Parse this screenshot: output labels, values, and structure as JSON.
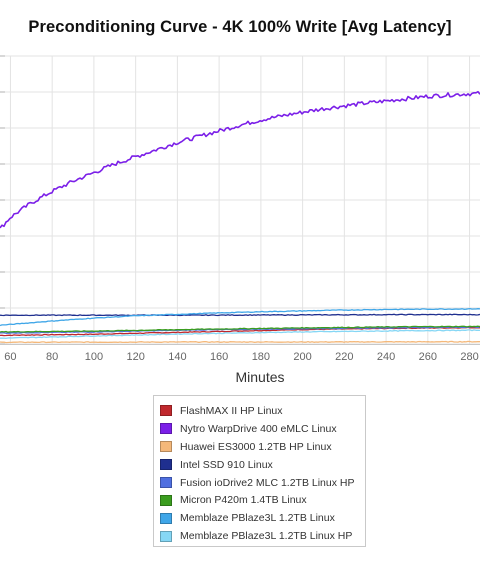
{
  "chart_data": {
    "type": "line",
    "title": "Preconditioning Curve - 4K 100% Write [Avg Latency]",
    "xlabel": "Minutes",
    "ylabel": "",
    "xlim": [
      55,
      285
    ],
    "ylim": [
      0,
      100
    ],
    "x_ticks": [
      60,
      80,
      100,
      120,
      140,
      160,
      180,
      200,
      220,
      240,
      260,
      280
    ],
    "grid": true,
    "legend_position": "bottom",
    "series": [
      {
        "name": "FlashMAX II HP Linux",
        "color": "#c0282d",
        "x": [
          55,
          100,
          150,
          200,
          250,
          285
        ],
        "y": [
          3.0,
          3.4,
          4.2,
          5.0,
          5.5,
          5.7
        ]
      },
      {
        "name": "Nytro WarpDrive 400 eMLC Linux",
        "color": "#7b1fe8",
        "x": [
          55,
          60,
          70,
          80,
          90,
          100,
          110,
          120,
          130,
          140,
          150,
          160,
          170,
          180,
          190,
          200,
          210,
          220,
          230,
          240,
          250,
          260,
          270,
          280,
          285
        ],
        "y": [
          40.0,
          44.0,
          49.0,
          53.0,
          56.5,
          59.5,
          62.5,
          65.0,
          67.5,
          70.0,
          72.0,
          74.0,
          76.0,
          77.8,
          79.2,
          80.5,
          81.7,
          82.7,
          83.6,
          84.4,
          85.2,
          86.0,
          86.5,
          86.9,
          87.0
        ]
      },
      {
        "name": "Huawei ES3000 1.2TB HP Linux",
        "color": "#f4b87a",
        "x": [
          55,
          100,
          150,
          200,
          250,
          285
        ],
        "y": [
          0.6,
          0.65,
          0.7,
          0.7,
          0.75,
          0.8
        ]
      },
      {
        "name": "Intel SSD 910 Linux",
        "color": "#1f2f8f",
        "x": [
          55,
          100,
          150,
          200,
          250,
          285
        ],
        "y": [
          10.0,
          10.0,
          10.0,
          10.1,
          10.2,
          10.2
        ]
      },
      {
        "name": "Fusion ioDrive2 MLC 1.2TB Linux HP",
        "color": "#4f6fe0",
        "x": [
          55,
          100,
          150,
          200,
          250,
          285
        ],
        "y": [
          3.8,
          4.2,
          4.9,
          5.3,
          5.7,
          5.9
        ]
      },
      {
        "name": "Micron P420m 1.4TB Linux",
        "color": "#3b9d1f",
        "x": [
          55,
          100,
          150,
          200,
          250,
          285
        ],
        "y": [
          4.2,
          4.5,
          5.1,
          5.6,
          6.0,
          6.1
        ]
      },
      {
        "name": "Memblaze PBlaze3L 1.2TB Linux",
        "color": "#3fa6e8",
        "x": [
          55,
          80,
          100,
          120,
          140,
          160,
          180,
          200,
          220,
          240,
          260,
          285
        ],
        "y": [
          6.5,
          8.0,
          9.0,
          9.8,
          10.3,
          10.8,
          11.2,
          11.5,
          11.8,
          12.0,
          12.1,
          12.2
        ]
      },
      {
        "name": "Memblaze PBlaze3L 1.2TB Linux HP",
        "color": "#86d7f5",
        "x": [
          55,
          100,
          150,
          200,
          250,
          285
        ],
        "y": [
          2.0,
          2.8,
          3.6,
          4.2,
          4.6,
          4.8
        ]
      }
    ]
  }
}
